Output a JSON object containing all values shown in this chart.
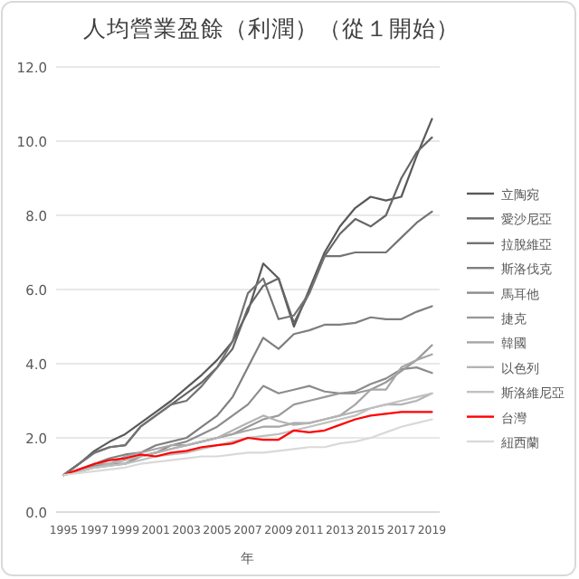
{
  "chart_data": {
    "type": "line",
    "title": "人均營業盈餘（利潤）（從１開始）",
    "xlabel": "年",
    "categories": [
      "1995",
      null,
      "1997",
      null,
      "1999",
      null,
      "2001",
      null,
      "2003",
      null,
      "2005",
      null,
      "2007",
      null,
      "2009",
      null,
      "2011",
      null,
      "2013",
      null,
      "2015",
      null,
      "2017",
      null,
      "2019"
    ],
    "ylim": [
      0,
      12
    ],
    "yticks": [
      {
        "value": 0,
        "label": "0.0"
      },
      {
        "value": 2,
        "label": "2.0"
      },
      {
        "value": 4,
        "label": "4.0"
      },
      {
        "value": 6,
        "label": "6.0"
      },
      {
        "value": 8,
        "label": "8.0"
      },
      {
        "value": 10,
        "label": "10.0"
      },
      {
        "value": 12,
        "label": "12.0"
      }
    ],
    "grid": "y",
    "legend": "right",
    "marker": "none",
    "line_style": "solid",
    "series": [
      {
        "name": "立陶宛",
        "color": "#595959",
        "values": [
          1,
          1.3,
          1.65,
          1.9,
          2.1,
          2.4,
          2.7,
          3.0,
          3.35,
          3.7,
          4.1,
          4.6,
          5.4,
          6.7,
          6.3,
          5.0,
          6.0,
          7.0,
          7.7,
          8.2,
          8.5,
          8.4,
          8.5,
          9.6,
          10.6
        ]
      },
      {
        "name": "愛沙尼亞",
        "color": "#666666",
        "values": [
          1,
          1.3,
          1.6,
          1.75,
          1.8,
          2.3,
          2.6,
          2.9,
          3.2,
          3.5,
          3.9,
          4.4,
          5.5,
          6.1,
          6.3,
          5.1,
          5.9,
          6.9,
          7.5,
          7.9,
          7.7,
          8.0,
          9.0,
          9.7,
          10.1
        ]
      },
      {
        "name": "拉脫維亞",
        "color": "#737373",
        "values": [
          1,
          1.3,
          1.6,
          1.75,
          1.8,
          2.3,
          2.6,
          2.9,
          3.0,
          3.4,
          3.9,
          4.6,
          5.9,
          6.3,
          5.2,
          5.3,
          5.9,
          6.9,
          6.9,
          7.0,
          7.0,
          7.0,
          7.4,
          7.8,
          8.1
        ]
      },
      {
        "name": "斯洛伐克",
        "color": "#7f7f7f",
        "values": [
          1,
          1.1,
          1.3,
          1.45,
          1.55,
          1.6,
          1.8,
          1.9,
          2.0,
          2.3,
          2.6,
          3.1,
          3.9,
          4.7,
          4.4,
          4.8,
          4.9,
          5.05,
          5.05,
          5.1,
          5.25,
          5.2,
          5.2,
          5.4,
          5.55
        ]
      },
      {
        "name": "馬耳他",
        "color": "#8c8c8c",
        "values": [
          1,
          1.1,
          1.25,
          1.3,
          1.3,
          1.5,
          1.6,
          1.8,
          1.9,
          2.1,
          2.3,
          2.6,
          2.9,
          3.4,
          3.2,
          3.3,
          3.4,
          3.25,
          3.2,
          3.25,
          3.45,
          3.6,
          3.85,
          3.9,
          3.75
        ]
      },
      {
        "name": "捷克",
        "color": "#999999",
        "values": [
          1,
          1.1,
          1.2,
          1.25,
          1.3,
          1.5,
          1.6,
          1.7,
          1.8,
          1.9,
          2.0,
          2.1,
          2.3,
          2.5,
          2.6,
          2.9,
          3.0,
          3.1,
          3.2,
          3.2,
          3.3,
          3.5,
          3.8,
          4.1,
          4.5
        ]
      },
      {
        "name": "韓國",
        "color": "#a6a6a6",
        "values": [
          1,
          1.15,
          1.3,
          1.3,
          1.5,
          1.6,
          1.7,
          1.8,
          1.8,
          1.9,
          2.0,
          2.1,
          2.2,
          2.3,
          2.3,
          2.4,
          2.4,
          2.5,
          2.6,
          2.9,
          3.3,
          3.3,
          3.9,
          4.1,
          4.25
        ]
      },
      {
        "name": "以色列",
        "color": "#b3b3b3",
        "values": [
          1,
          1.1,
          1.2,
          1.3,
          1.4,
          1.5,
          1.6,
          1.7,
          1.8,
          1.9,
          2.0,
          2.2,
          2.4,
          2.6,
          2.45,
          2.35,
          2.4,
          2.5,
          2.6,
          2.7,
          2.8,
          2.9,
          2.9,
          3.0,
          3.2
        ]
      },
      {
        "name": "斯洛維尼亞",
        "color": "#c0c0c0",
        "values": [
          1,
          1.1,
          1.2,
          1.25,
          1.3,
          1.4,
          1.5,
          1.55,
          1.6,
          1.7,
          1.8,
          1.9,
          2.0,
          2.05,
          2.1,
          2.2,
          2.3,
          2.4,
          2.5,
          2.6,
          2.8,
          2.9,
          3.0,
          3.1,
          3.2
        ]
      },
      {
        "name": "台灣",
        "color": "#ff0000",
        "values": [
          1,
          1.15,
          1.3,
          1.4,
          1.45,
          1.55,
          1.5,
          1.6,
          1.65,
          1.75,
          1.8,
          1.85,
          2.0,
          1.95,
          1.95,
          2.2,
          2.15,
          2.2,
          2.35,
          2.5,
          2.6,
          2.65,
          2.7,
          2.7,
          2.7
        ]
      },
      {
        "name": "紐西蘭",
        "color": "#d9d9d9",
        "values": [
          1,
          1.05,
          1.1,
          1.15,
          1.2,
          1.3,
          1.35,
          1.4,
          1.45,
          1.5,
          1.5,
          1.55,
          1.6,
          1.6,
          1.65,
          1.7,
          1.75,
          1.75,
          1.85,
          1.9,
          2.0,
          2.15,
          2.3,
          2.4,
          2.5
        ]
      }
    ]
  }
}
